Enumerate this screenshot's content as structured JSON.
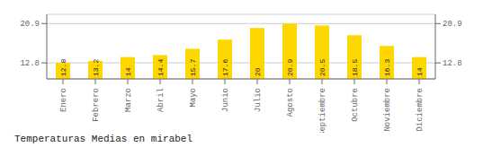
{
  "chart_data": {
    "type": "bar",
    "title": "Temperaturas Medias en mirabel",
    "categories": [
      "Enero",
      "Febrero",
      "Marzo",
      "Abril",
      "Mayo",
      "Junio",
      "Julio",
      "Agosto",
      "Septiembre",
      "Octubre",
      "Noviembre",
      "Diciembre"
    ],
    "values": [
      12.8,
      13.2,
      14.0,
      14.4,
      15.7,
      17.6,
      20.0,
      20.9,
      20.5,
      18.5,
      16.3,
      14.0
    ],
    "color": "#FFD700",
    "ylim": [
      9.5,
      22.8
    ],
    "yticks": [
      12.8,
      20.9
    ],
    "grid": true,
    "data_labels": true
  }
}
